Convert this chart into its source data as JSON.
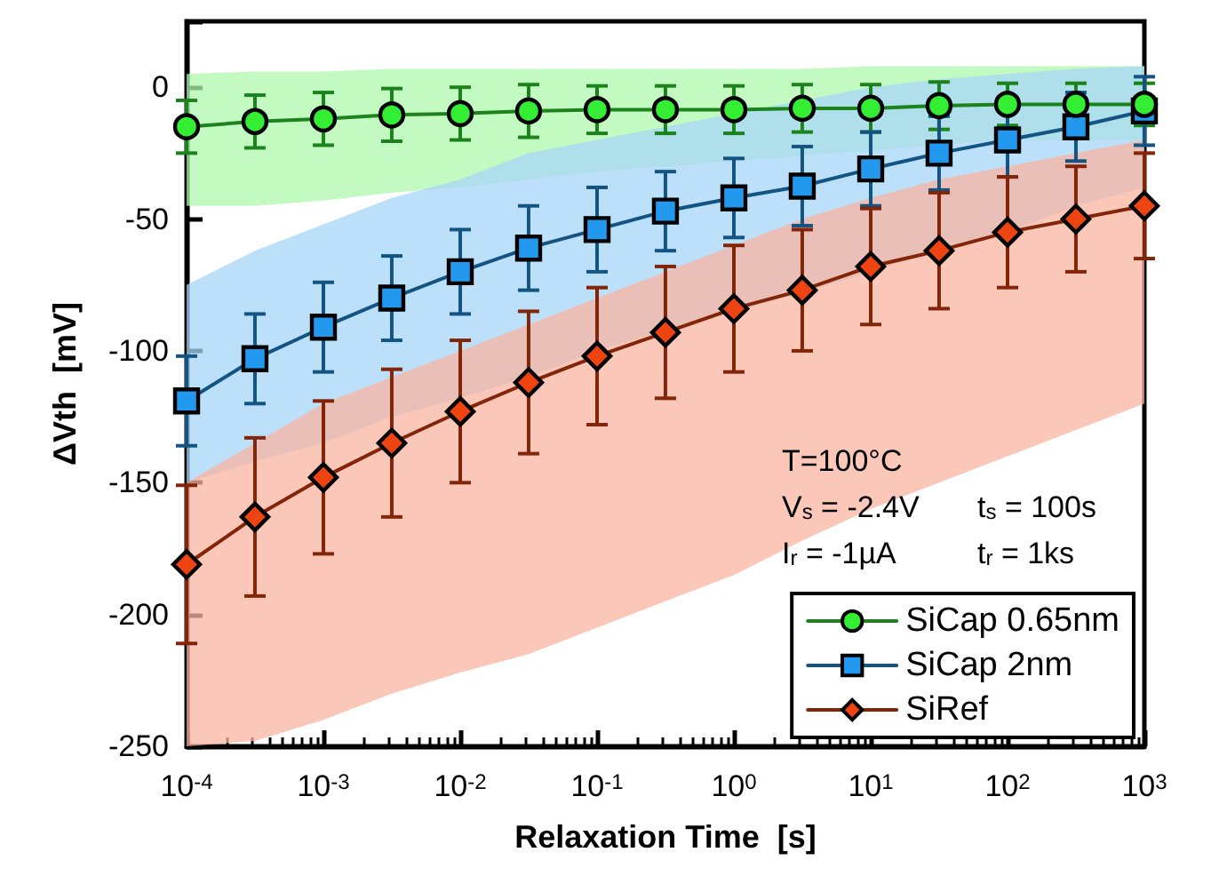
{
  "chart_data": {
    "type": "line",
    "xlabel": "Relaxation Time  [s]",
    "ylabel": "ΔVth  [mV]",
    "log": "x",
    "x": [
      0.0001,
      0.000316,
      0.001,
      0.00316,
      0.01,
      0.0316,
      0.1,
      0.316,
      1,
      3.16,
      10,
      31.6,
      100,
      316,
      1000
    ],
    "xlim": [
      0.0001,
      1000
    ],
    "xticks": [
      {
        "value": 0.0001,
        "label": "10$^{-4}$"
      },
      {
        "value": 0.001,
        "label": "10$^{-3}$"
      },
      {
        "value": 0.01,
        "label": "10$^{-2}$"
      },
      {
        "value": 0.1,
        "label": "10$^{-1}$"
      },
      {
        "value": 1,
        "label": "10$^{0}$"
      },
      {
        "value": 10,
        "label": "10$^{1}$"
      },
      {
        "value": 100,
        "label": "10$^{2}$"
      },
      {
        "value": 1000,
        "label": "10$^{3}$"
      }
    ],
    "ylim": [
      -250,
      25
    ],
    "yticks": [
      -250,
      -200,
      -150,
      -100,
      -50,
      0
    ],
    "grid": false,
    "legend": "bottom right",
    "line_style": "solid",
    "series": [
      {
        "name": "SiCap 0.65nm",
        "color": "#33ee33",
        "marker": "circle",
        "values": [
          -15,
          -13,
          -12,
          -10.5,
          -10,
          -9,
          -8.5,
          -8.5,
          -8.5,
          -8,
          -8,
          -7,
          -6.5,
          -6.5,
          -6.5
        ],
        "errors": [
          10,
          10,
          10,
          10,
          10,
          10,
          9,
          9,
          9,
          9,
          9,
          9,
          8,
          8,
          8
        ],
        "lower": [
          -45,
          -45,
          -43,
          -40,
          -38,
          -35,
          -32,
          -30,
          -28,
          -26,
          -24,
          -22,
          -20,
          -20,
          -20
        ],
        "upper": [
          5,
          6,
          6,
          7,
          7,
          7,
          7,
          7,
          7,
          7,
          8,
          8,
          8,
          8,
          8
        ]
      },
      {
        "name": "SiCap 2nm",
        "color": "#2299ee",
        "marker": "square",
        "values": [
          -119,
          -103,
          -91,
          -80,
          -70,
          -61,
          -54,
          -47,
          -42,
          -37.5,
          -31,
          -25,
          -20,
          -15,
          -9
        ],
        "errors": [
          17,
          17,
          17,
          16,
          16,
          16,
          16,
          15,
          15,
          15,
          14,
          14,
          14,
          13,
          13
        ],
        "lower": [
          -150,
          -142,
          -135,
          -125,
          -118,
          -110,
          -100,
          -92,
          -85,
          -78,
          -70,
          -62,
          -55,
          -45,
          -38
        ],
        "upper": [
          -75,
          -62,
          -52,
          -42,
          -35,
          -25,
          -20,
          -15,
          -10,
          -5,
          0,
          3,
          5,
          7,
          8
        ]
      },
      {
        "name": "SiRef",
        "color": "#ee4411",
        "marker": "diamond",
        "values": [
          -181,
          -163,
          -148,
          -135,
          -123,
          -112,
          -102,
          -93,
          -84,
          -77,
          -68,
          -62,
          -55,
          -50,
          -45
        ],
        "errors": [
          30,
          30,
          29,
          28,
          27,
          27,
          26,
          25,
          24,
          23,
          22,
          22,
          21,
          20,
          20
        ],
        "lower": [
          -250,
          -248,
          -240,
          -230,
          -222,
          -215,
          -205,
          -195,
          -185,
          -172,
          -160,
          -150,
          -140,
          -130,
          -120
        ],
        "upper": [
          -150,
          -135,
          -120,
          -110,
          -100,
          -90,
          -80,
          -70,
          -60,
          -50,
          -42,
          -35,
          -30,
          -25,
          -20
        ]
      }
    ],
    "annotations": [
      "T=100°C",
      "V$_{s}$ = -2.4V",
      "t$_{s}$ = 100s",
      "I$_{r}$ = -1µA",
      "t$_{r}$ = 1ks"
    ]
  }
}
